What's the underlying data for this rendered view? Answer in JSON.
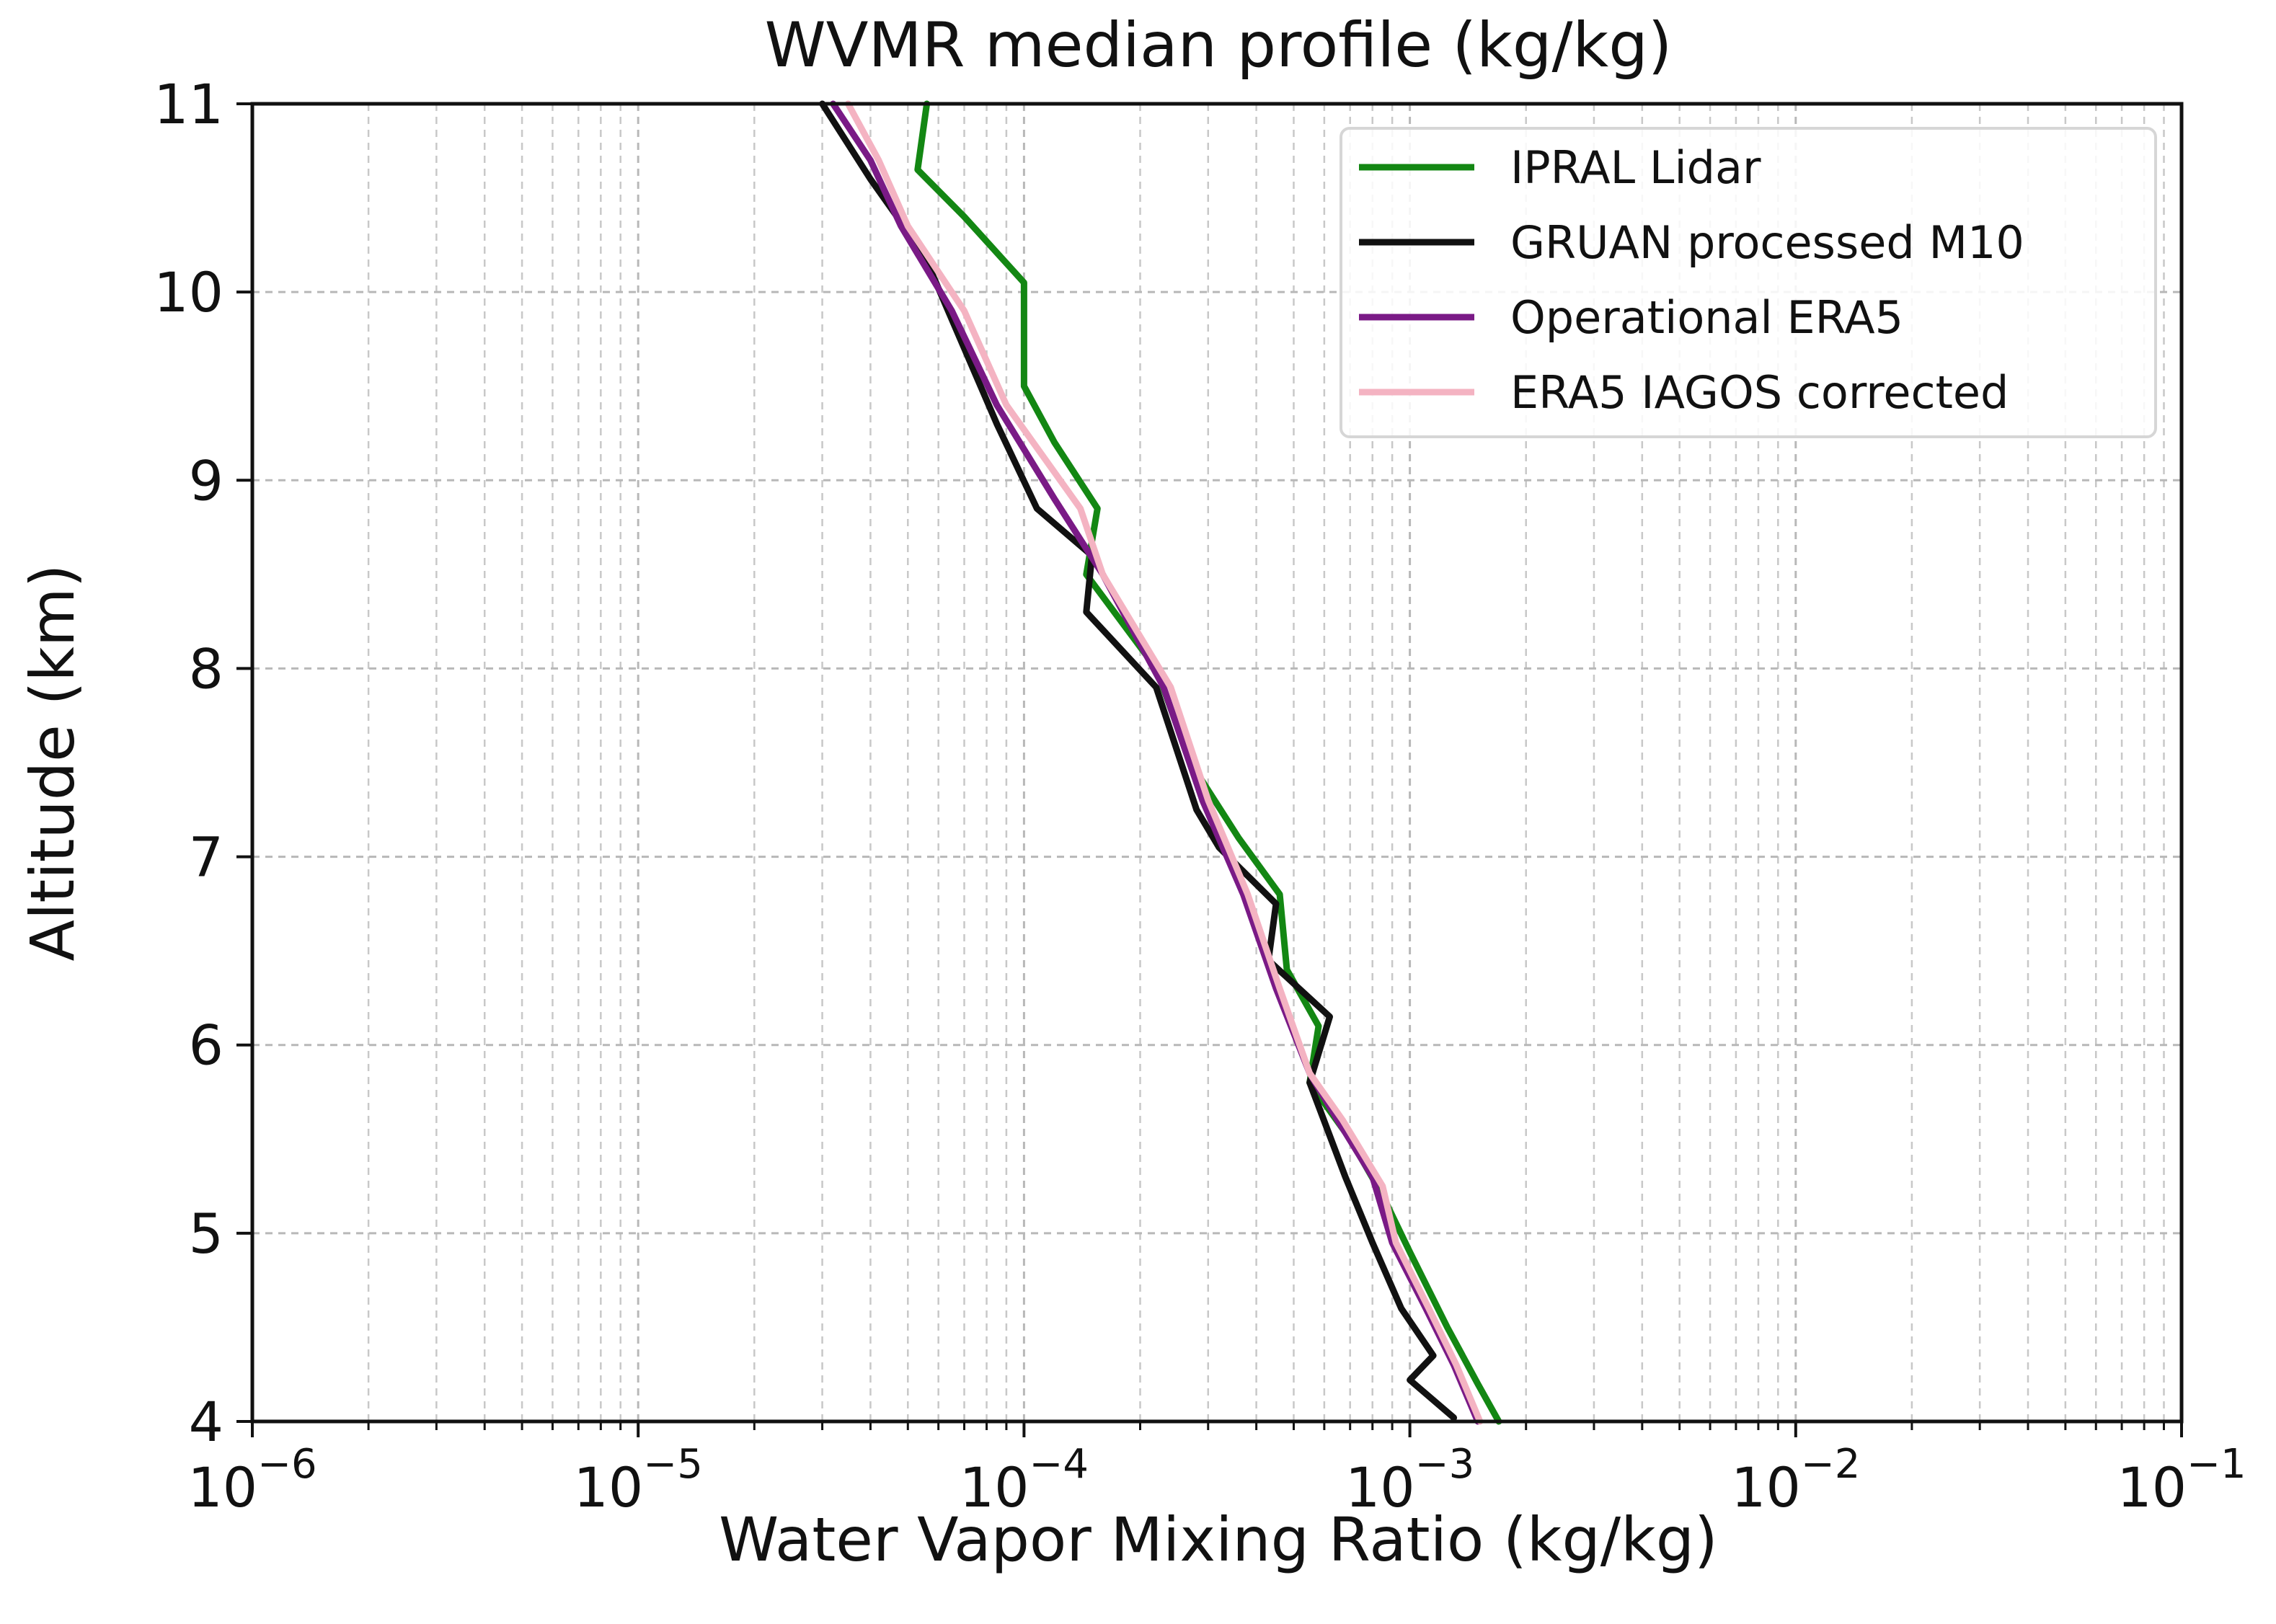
{
  "chart_data": {
    "type": "line",
    "title": "WVMR median profile (kg/kg)",
    "xlabel": "Water Vapor Mixing Ratio (kg/kg)",
    "ylabel": "Altitude (km)",
    "xscale": "log",
    "xlim": [
      1e-06,
      0.1
    ],
    "ylim": [
      4,
      11
    ],
    "grid": true,
    "legend_position": "top-right",
    "xticks": [
      {
        "value": 1e-06,
        "base": "10",
        "exp": "−6"
      },
      {
        "value": 1e-05,
        "base": "10",
        "exp": "−5"
      },
      {
        "value": 0.0001,
        "base": "10",
        "exp": "−4"
      },
      {
        "value": 0.001,
        "base": "10",
        "exp": "−3"
      },
      {
        "value": 0.01,
        "base": "10",
        "exp": "−2"
      },
      {
        "value": 0.1,
        "base": "10",
        "exp": "−1"
      }
    ],
    "yticks": [
      {
        "value": 4,
        "label": "4"
      },
      {
        "value": 5,
        "label": "5"
      },
      {
        "value": 6,
        "label": "6"
      },
      {
        "value": 7,
        "label": "7"
      },
      {
        "value": 8,
        "label": "8"
      },
      {
        "value": 9,
        "label": "9"
      },
      {
        "value": 10,
        "label": "10"
      },
      {
        "value": 11,
        "label": "11"
      }
    ],
    "series": [
      {
        "name": "IPRAL Lidar",
        "color": "#138713",
        "points": [
          [
            0.0017,
            4.0
          ],
          [
            0.0015,
            4.2
          ],
          [
            0.00125,
            4.5
          ],
          [
            0.001,
            4.9
          ],
          [
            0.00085,
            5.2
          ],
          [
            0.0007,
            5.5
          ],
          [
            0.00055,
            5.8
          ],
          [
            0.00058,
            6.1
          ],
          [
            0.00048,
            6.4
          ],
          [
            0.00046,
            6.8
          ],
          [
            0.00036,
            7.1
          ],
          [
            0.00027,
            7.5
          ],
          [
            0.00022,
            8.0
          ],
          [
            0.000145,
            8.5
          ],
          [
            0.000155,
            8.85
          ],
          [
            0.00012,
            9.2
          ],
          [
            0.0001,
            9.5
          ],
          [
            0.0001,
            10.05
          ],
          [
            7e-05,
            10.4
          ],
          [
            5.3e-05,
            10.65
          ],
          [
            5.6e-05,
            11.0
          ]
        ]
      },
      {
        "name": "GRUAN processed M10",
        "color": "#111111",
        "points": [
          [
            0.0013,
            4.02
          ],
          [
            0.001,
            4.22
          ],
          [
            0.00115,
            4.35
          ],
          [
            0.00095,
            4.6
          ],
          [
            0.0008,
            4.95
          ],
          [
            0.00068,
            5.3
          ],
          [
            0.00055,
            5.8
          ],
          [
            0.00062,
            6.15
          ],
          [
            0.00043,
            6.45
          ],
          [
            0.00045,
            6.75
          ],
          [
            0.00032,
            7.05
          ],
          [
            0.00028,
            7.25
          ],
          [
            0.00022,
            7.9
          ],
          [
            0.000145,
            8.3
          ],
          [
            0.00015,
            8.6
          ],
          [
            0.000108,
            8.85
          ],
          [
            8.5e-05,
            9.3
          ],
          [
            5.5e-05,
            10.2
          ],
          [
            4e-05,
            10.6
          ],
          [
            3e-05,
            11.0
          ]
        ]
      },
      {
        "name": "Operational ERA5",
        "color": "#7a1a86",
        "points": [
          [
            0.0015,
            4.0
          ],
          [
            0.0013,
            4.3
          ],
          [
            0.0011,
            4.6
          ],
          [
            0.0009,
            4.95
          ],
          [
            0.0008,
            5.3
          ],
          [
            0.00065,
            5.6
          ],
          [
            0.00055,
            5.85
          ],
          [
            0.00045,
            6.3
          ],
          [
            0.00037,
            6.8
          ],
          [
            0.00029,
            7.3
          ],
          [
            0.00023,
            7.9
          ],
          [
            0.00016,
            8.5
          ],
          [
            0.00012,
            8.9
          ],
          [
            8.5e-05,
            9.4
          ],
          [
            6.5e-05,
            9.9
          ],
          [
            4.8e-05,
            10.35
          ],
          [
            4e-05,
            10.7
          ],
          [
            3.2e-05,
            11.0
          ]
        ]
      },
      {
        "name": "ERA5 IAGOS corrected",
        "color": "#f4b3c2",
        "points": [
          [
            0.00152,
            4.0
          ],
          [
            0.00132,
            4.3
          ],
          [
            0.00112,
            4.6
          ],
          [
            0.00092,
            4.95
          ],
          [
            0.00085,
            5.25
          ],
          [
            0.00067,
            5.6
          ],
          [
            0.00055,
            5.85
          ],
          [
            0.00046,
            6.3
          ],
          [
            0.00038,
            6.8
          ],
          [
            0.0003,
            7.3
          ],
          [
            0.00024,
            7.9
          ],
          [
            0.00016,
            8.5
          ],
          [
            0.00014,
            8.85
          ],
          [
            9e-05,
            9.4
          ],
          [
            7e-05,
            9.9
          ],
          [
            5e-05,
            10.35
          ],
          [
            4.2e-05,
            10.7
          ],
          [
            3.5e-05,
            11.0
          ]
        ]
      }
    ]
  }
}
